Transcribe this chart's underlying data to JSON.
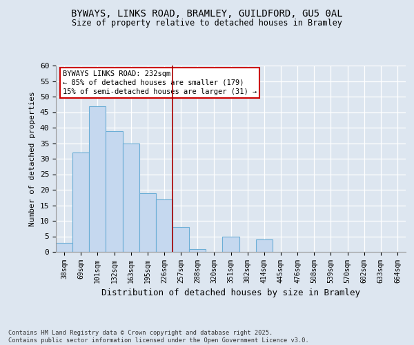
{
  "title": "BYWAYS, LINKS ROAD, BRAMLEY, GUILDFORD, GU5 0AL",
  "subtitle": "Size of property relative to detached houses in Bramley",
  "xlabel": "Distribution of detached houses by size in Bramley",
  "ylabel": "Number of detached properties",
  "categories": [
    "38sqm",
    "69sqm",
    "101sqm",
    "132sqm",
    "163sqm",
    "195sqm",
    "226sqm",
    "257sqm",
    "288sqm",
    "320sqm",
    "351sqm",
    "382sqm",
    "414sqm",
    "445sqm",
    "476sqm",
    "508sqm",
    "539sqm",
    "570sqm",
    "602sqm",
    "633sqm",
    "664sqm"
  ],
  "values": [
    3,
    32,
    47,
    39,
    35,
    19,
    17,
    8,
    1,
    0,
    5,
    0,
    4,
    0,
    0,
    0,
    0,
    0,
    0,
    0,
    0
  ],
  "bar_color": "#c5d8ef",
  "bar_edge_color": "#6baed6",
  "marker_line_color": "#aa0000",
  "marker_line_index": 6.5,
  "annotation_text": "BYWAYS LINKS ROAD: 232sqm\n← 85% of detached houses are smaller (179)\n15% of semi-detached houses are larger (31) →",
  "annotation_box_color": "#cc0000",
  "ylim": [
    0,
    60
  ],
  "yticks": [
    0,
    5,
    10,
    15,
    20,
    25,
    30,
    35,
    40,
    45,
    50,
    55,
    60
  ],
  "footnote": "Contains HM Land Registry data © Crown copyright and database right 2025.\nContains public sector information licensed under the Open Government Licence v3.0.",
  "background_color": "#dde6f0",
  "plot_background": "#dde6f0"
}
